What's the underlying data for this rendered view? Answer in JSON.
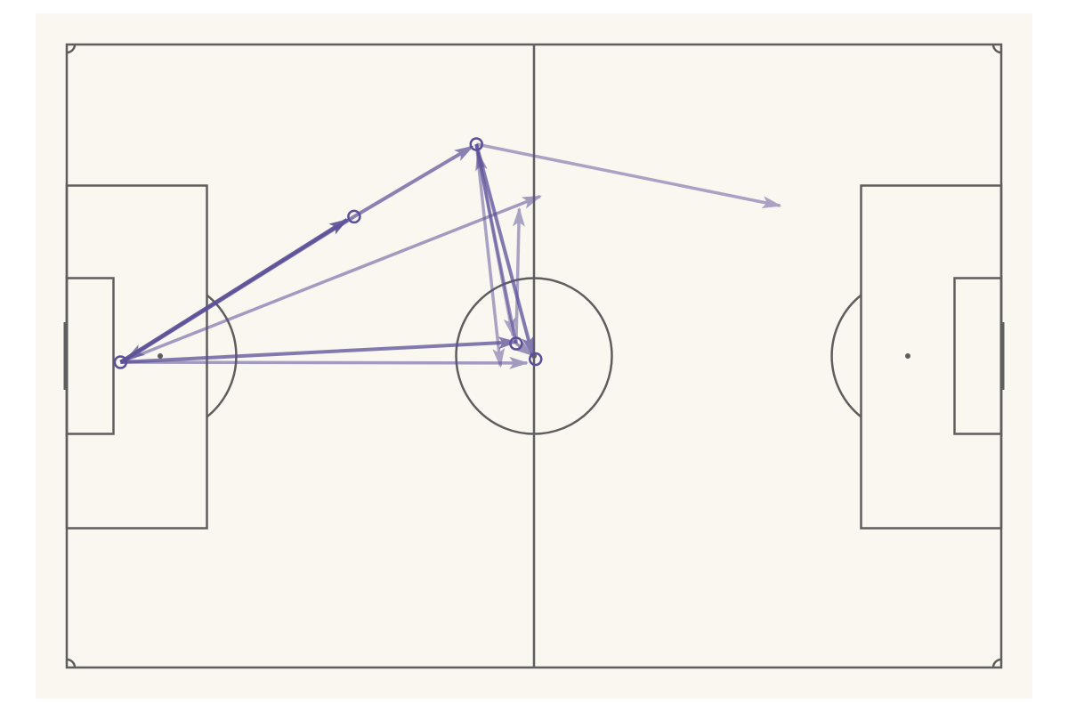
{
  "pitch": {
    "background_color": "#FAF6F0",
    "line_color": "#5E5E5E"
  },
  "pass_color": "#5B5098",
  "chart_data": {
    "type": "pass-map",
    "x_range": [
      0,
      120
    ],
    "y_range": [
      0,
      80
    ],
    "players": [
      {
        "id": "p1",
        "x": 6.9,
        "y": 39.2
      },
      {
        "id": "p2",
        "x": 36.9,
        "y": 57.9
      },
      {
        "id": "p3",
        "x": 52.6,
        "y": 67.2
      },
      {
        "id": "p4",
        "x": 57.7,
        "y": 41.6
      },
      {
        "id": "p5",
        "x": 60.2,
        "y": 39.6
      }
    ],
    "passes": [
      {
        "x1": 6.9,
        "y1": 39.2,
        "x2": 36.0,
        "y2": 57.5,
        "alpha": 0.9,
        "width": 4.5
      },
      {
        "x1": 36.9,
        "y1": 57.9,
        "x2": 7.7,
        "y2": 39.6,
        "alpha": 0.7,
        "width": 4
      },
      {
        "x1": 36.9,
        "y1": 57.9,
        "x2": 52.1,
        "y2": 66.9,
        "alpha": 0.7,
        "width": 4
      },
      {
        "x1": 6.9,
        "y1": 39.2,
        "x2": 57.7,
        "y2": 41.8,
        "alpha": 0.75,
        "width": 4
      },
      {
        "x1": 6.9,
        "y1": 39.2,
        "x2": 59.1,
        "y2": 39.1,
        "alpha": 0.55,
        "width": 3.5
      },
      {
        "x1": 6.9,
        "y1": 39.2,
        "x2": 60.8,
        "y2": 60.5,
        "alpha": 0.55,
        "width": 3.5
      },
      {
        "x1": 52.6,
        "y1": 67.2,
        "x2": 91.6,
        "y2": 59.3,
        "alpha": 0.5,
        "width": 3.5
      },
      {
        "x1": 52.6,
        "y1": 67.2,
        "x2": 57.3,
        "y2": 42.6,
        "alpha": 0.5,
        "width": 3.5
      },
      {
        "x1": 52.6,
        "y1": 67.2,
        "x2": 59.8,
        "y2": 40.2,
        "alpha": 0.75,
        "width": 4
      },
      {
        "x1": 57.7,
        "y1": 41.6,
        "x2": 52.8,
        "y2": 66.1,
        "alpha": 0.6,
        "width": 3.5
      },
      {
        "x1": 52.6,
        "y1": 67.2,
        "x2": 55.7,
        "y2": 38.7,
        "alpha": 0.5,
        "width": 3.5
      },
      {
        "x1": 57.7,
        "y1": 41.6,
        "x2": 58.1,
        "y2": 58.9,
        "alpha": 0.5,
        "width": 3.5
      },
      {
        "x1": 57.7,
        "y1": 41.6,
        "x2": 59.8,
        "y2": 40.1,
        "alpha": 0.6,
        "width": 3.5
      }
    ]
  }
}
